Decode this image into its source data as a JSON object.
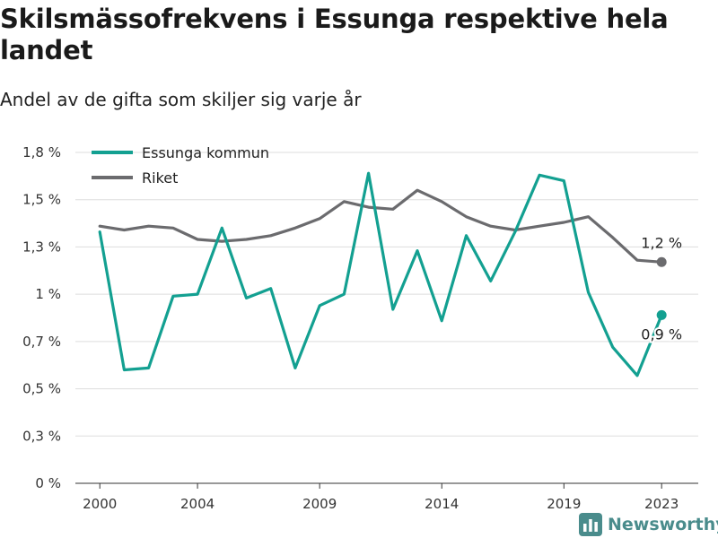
{
  "title": "Skilsmässofrekvens i Essunga respektive hela landet",
  "subtitle": "Andel av de gifta som skiljer sig varje år",
  "brand": {
    "name": "Newsworthy",
    "color": "#4a8c8c"
  },
  "chart_data": {
    "type": "line",
    "x": [
      2000,
      2001,
      2002,
      2003,
      2004,
      2005,
      2006,
      2007,
      2008,
      2009,
      2010,
      2011,
      2012,
      2013,
      2014,
      2015,
      2016,
      2017,
      2018,
      2019,
      2020,
      2021,
      2022,
      2023
    ],
    "x_ticks": [
      2000,
      2004,
      2009,
      2014,
      2019,
      2023
    ],
    "y_ticks": [
      {
        "value": 0,
        "label": "0 %"
      },
      {
        "value": 0.25,
        "label": "0,3 %"
      },
      {
        "value": 0.5,
        "label": "0,5 %"
      },
      {
        "value": 0.75,
        "label": "0,7 %"
      },
      {
        "value": 1.0,
        "label": "1 %"
      },
      {
        "value": 1.25,
        "label": "1,3 %"
      },
      {
        "value": 1.5,
        "label": "1,5 %"
      },
      {
        "value": 1.75,
        "label": "1,8 %"
      }
    ],
    "xlim": [
      1999,
      2024.5
    ],
    "ylim": [
      0,
      1.75
    ],
    "grid": true,
    "legend_position": "top-left",
    "series": [
      {
        "name": "Essunga kommun",
        "color": "#13a091",
        "values": [
          1.33,
          0.6,
          0.61,
          0.99,
          1.0,
          1.35,
          0.98,
          1.03,
          0.61,
          0.94,
          1.0,
          1.64,
          0.92,
          1.23,
          0.86,
          1.31,
          1.07,
          1.33,
          1.63,
          1.6,
          1.01,
          0.72,
          0.57,
          0.89
        ],
        "end_label": "0,9 %"
      },
      {
        "name": "Riket",
        "color": "#6b6b6e",
        "values": [
          1.36,
          1.34,
          1.36,
          1.35,
          1.29,
          1.28,
          1.29,
          1.31,
          1.35,
          1.4,
          1.49,
          1.46,
          1.45,
          1.55,
          1.49,
          1.41,
          1.36,
          1.34,
          1.36,
          1.38,
          1.41,
          1.3,
          1.18,
          1.17
        ],
        "end_label": "1,2 %"
      }
    ]
  }
}
